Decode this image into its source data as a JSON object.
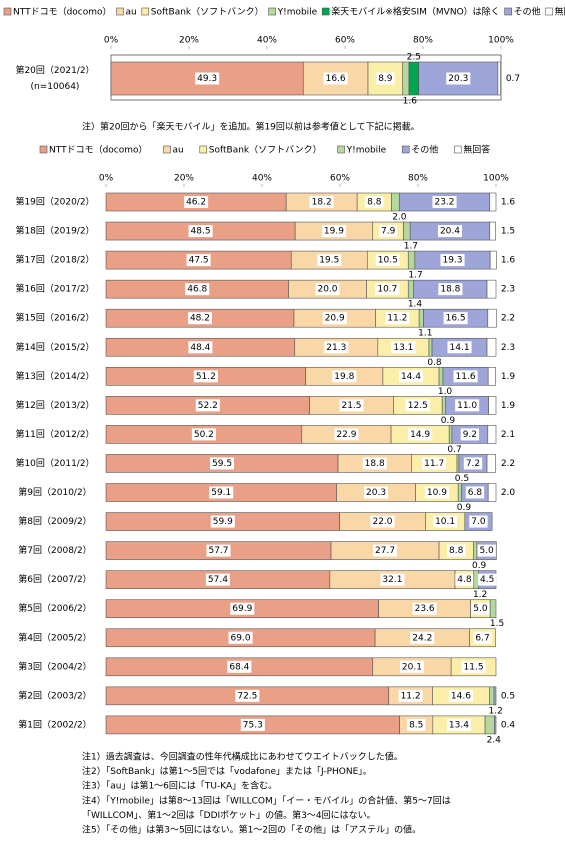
{
  "chart_data": [
    {
      "type": "bar",
      "orientation": "horizontal",
      "stacked": true,
      "categories": [
        "第20回（2021/2）"
      ],
      "category_sublabels": [
        "(n=10064)"
      ],
      "xlim": [
        0,
        100
      ],
      "xticks": [
        {
          "value": 0,
          "label": "0%"
        },
        {
          "value": 20,
          "label": "20%"
        },
        {
          "value": 40,
          "label": "40%"
        },
        {
          "value": 60,
          "label": "60%"
        },
        {
          "value": 80,
          "label": "80%"
        },
        {
          "value": 100,
          "label": "100%"
        }
      ],
      "series": [
        {
          "name": "NTTドコモ（docomo）",
          "color": "#ea9f87",
          "label_position": "inside",
          "values": [
            49.3
          ],
          "value_labels": [
            "49.3"
          ]
        },
        {
          "name": "au",
          "color": "#f9d7a6",
          "label_position": "inside",
          "values": [
            16.6
          ],
          "value_labels": [
            "16.6"
          ]
        },
        {
          "name": "SoftBank（ソフトバンク）",
          "color": "#fbeea8",
          "label_position": "inside",
          "values": [
            8.9
          ],
          "value_labels": [
            "8.9"
          ]
        },
        {
          "name": "Y!mobile",
          "color": "#b5d99c",
          "label_position": "below",
          "values": [
            1.6
          ],
          "value_labels": [
            "1.6"
          ]
        },
        {
          "name": "楽天モバイル※格安SIM（MVNO）は除く",
          "color": "#00a651",
          "label_position": "above",
          "values": [
            2.5
          ],
          "value_labels": [
            "2.5"
          ]
        },
        {
          "name": "その他",
          "color": "#9ea6d9",
          "label_position": "inside",
          "values": [
            20.3
          ],
          "value_labels": [
            "20.3"
          ]
        },
        {
          "name": "無回答",
          "color": "#ffffff",
          "label_position": "right",
          "values": [
            0.7
          ],
          "value_labels": [
            "0.7"
          ]
        }
      ]
    },
    {
      "type": "bar",
      "orientation": "horizontal",
      "stacked": true,
      "categories": [
        "第19回（2020/2）",
        "第18回（2019/2）",
        "第17回（2018/2）",
        "第16回（2017/2）",
        "第15回（2016/2）",
        "第14回（2015/2）",
        "第13回（2014/2）",
        "第12回（2013/2）",
        "第11回（2012/2）",
        "第10回（2011/2）",
        "第9回（2010/2）",
        "第8回（2009/2）",
        "第7回（2008/2）",
        "第6回（2007/2）",
        "第5回（2006/2）",
        "第4回（2005/2）",
        "第3回（2004/2）",
        "第2回（2003/2）",
        "第1回（2002/2）"
      ],
      "xlim": [
        0,
        100
      ],
      "xticks": [
        {
          "value": 0,
          "label": "0%"
        },
        {
          "value": 20,
          "label": "20%"
        },
        {
          "value": 40,
          "label": "40%"
        },
        {
          "value": 60,
          "label": "60%"
        },
        {
          "value": 80,
          "label": "80%"
        },
        {
          "value": 100,
          "label": "100%"
        }
      ],
      "series": [
        {
          "name": "NTTドコモ（docomo）",
          "color": "#ea9f87",
          "label_position": "inside",
          "values": [
            46.2,
            48.5,
            47.5,
            46.8,
            48.2,
            48.4,
            51.2,
            52.2,
            50.2,
            59.5,
            59.1,
            59.9,
            57.7,
            57.4,
            69.9,
            69.0,
            68.4,
            72.5,
            75.3
          ],
          "value_labels": [
            "46.2",
            "48.5",
            "47.5",
            "46.8",
            "48.2",
            "48.4",
            "51.2",
            "52.2",
            "50.2",
            "59.5",
            "59.1",
            "59.9",
            "57.7",
            "57.4",
            "69.9",
            "69.0",
            "68.4",
            "72.5",
            "75.3"
          ]
        },
        {
          "name": "au",
          "color": "#f9d7a6",
          "label_position": "inside",
          "values": [
            18.2,
            19.9,
            19.5,
            20.0,
            20.9,
            21.3,
            19.8,
            21.5,
            22.9,
            18.8,
            20.3,
            22.0,
            27.7,
            32.1,
            23.6,
            24.2,
            20.1,
            11.2,
            8.5
          ],
          "value_labels": [
            "18.2",
            "19.9",
            "19.5",
            "20.0",
            "20.9",
            "21.3",
            "19.8",
            "21.5",
            "22.9",
            "18.8",
            "20.3",
            "22.0",
            "27.7",
            "32.1",
            "23.6",
            "24.2",
            "20.1",
            "11.2",
            "8.5"
          ]
        },
        {
          "name": "SoftBank（ソフトバンク）",
          "color": "#fbeea8",
          "label_position": "inside",
          "values": [
            8.8,
            7.9,
            10.5,
            10.7,
            11.2,
            13.1,
            14.4,
            12.5,
            14.9,
            11.7,
            10.9,
            10.1,
            8.8,
            4.8,
            5.0,
            6.7,
            11.5,
            14.6,
            13.4
          ],
          "value_labels": [
            "8.8",
            "7.9",
            "10.5",
            "10.7",
            "11.2",
            "13.1",
            "14.4",
            "12.5",
            "14.9",
            "11.7",
            "10.9",
            "10.1",
            "8.8",
            "4.8",
            "5.0",
            "6.7",
            "11.5",
            "14.6",
            "13.4"
          ]
        },
        {
          "name": "Y!mobile",
          "color": "#b5d99c",
          "label_position": "below",
          "values": [
            2.0,
            1.7,
            1.7,
            1.4,
            1.1,
            0.8,
            1.0,
            0.9,
            0.7,
            0.5,
            0.9,
            null,
            0.9,
            1.2,
            1.5,
            null,
            null,
            1.2,
            2.4
          ],
          "value_labels": [
            "2.0",
            "1.7",
            "1.7",
            "1.4",
            "1.1",
            "0.8",
            "1.0",
            "0.9",
            "0.7",
            "0.5",
            "0.9",
            null,
            "0.9",
            "1.2",
            "1.5",
            null,
            null,
            "1.2",
            "2.4"
          ]
        },
        {
          "name": "その他",
          "color": "#9ea6d9",
          "label_position": "inside",
          "values": [
            23.2,
            20.4,
            19.3,
            18.8,
            16.5,
            14.1,
            11.6,
            11.0,
            9.2,
            7.2,
            6.8,
            7.0,
            5.0,
            4.5,
            null,
            null,
            null,
            0.5,
            0.4
          ],
          "value_labels": [
            "23.2",
            "20.4",
            "19.3",
            "18.8",
            "16.5",
            "14.1",
            "11.6",
            "11.0",
            "9.2",
            "7.2",
            "6.8",
            "7.0",
            "5.0",
            "4.5",
            null,
            null,
            null,
            "0.5",
            "0.4"
          ]
        },
        {
          "name": "無回答",
          "color": "#ffffff",
          "label_position": "right",
          "values": [
            1.6,
            1.5,
            1.6,
            2.3,
            2.2,
            2.3,
            1.9,
            1.9,
            2.1,
            2.2,
            2.0,
            null,
            null,
            null,
            null,
            null,
            null,
            null,
            null
          ],
          "value_labels": [
            "1.6",
            "1.5",
            "1.6",
            "2.3",
            "2.2",
            "2.3",
            "1.9",
            "1.9",
            "2.1",
            "2.2",
            "2.0",
            null,
            null,
            null,
            null,
            null,
            null,
            null,
            null
          ]
        }
      ]
    }
  ],
  "note": "注）第20回から「楽天モバイル」を追加。第19回以前は参考値として下記に掲載。",
  "footnotes": [
    "注1）過去調査は、今回調査の性年代構成比にあわせてウエイトバックした値。",
    "注2）「SoftBank」は第1～5回では「vodafone」または「J-PHONE」。",
    "注3）「au」は第1～6回には「TU-KA」を含む。",
    "注4）「Y!mobile」は第8～13回は「WILLCOM」「イー・モバイル」の合計値、第5～7回は",
    "「WILLCOM」、第1～2回は「DDIポケット」の値。第3～4回にはない。",
    "注5）「その他」は第3～5回にはない。第1～2回の「その他」は「アステル」の値。"
  ]
}
